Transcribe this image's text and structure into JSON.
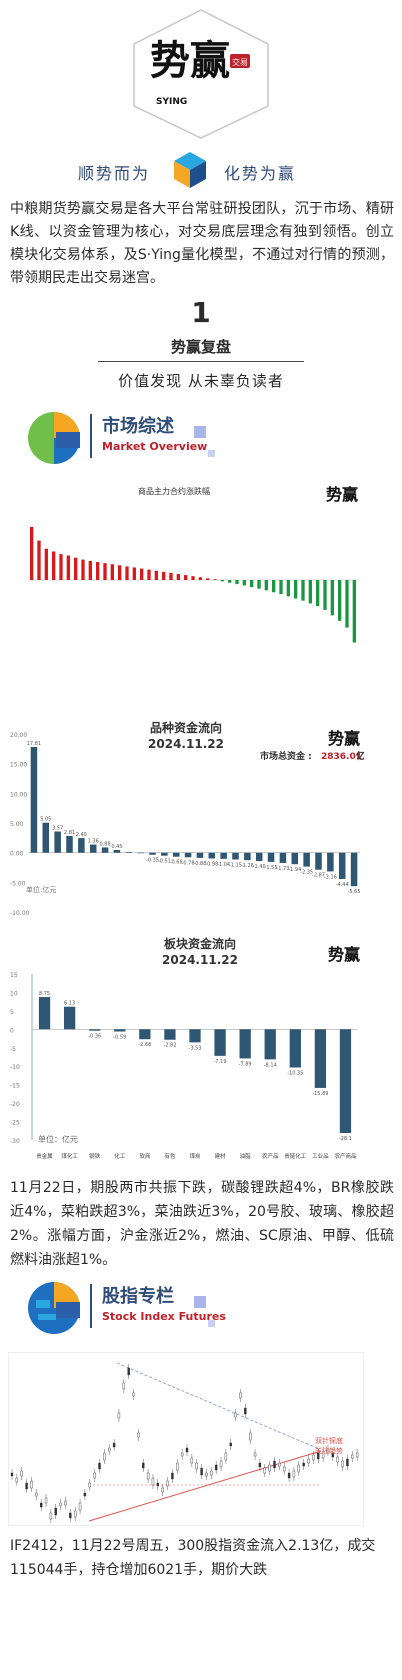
{
  "brand": {
    "logo_text_main": "势赢",
    "logo_text_sub": "SYING",
    "logo_seal": "交易",
    "tagline_left": "顺势而为",
    "tagline_right": "化势为赢"
  },
  "intro": "中粮期货势赢交易是各大平台常驻研投团队，沉于市场、精研K线、以资金管理为核心，对交易底层理念有独到领悟。创立模块化交易体系，及S·Ying量化模型，不通过对行情的预测，带领期民走出交易迷宫。",
  "section_one": {
    "number": "1",
    "subtitle": "势赢复盘",
    "slogan": "价值发现 从未辜负读者"
  },
  "market_overview": {
    "title_cn": "市场综述",
    "title_en": "Market Overview"
  },
  "chart1": {
    "title": "商品主力合约涨跌幅",
    "up_color": "#d7191c",
    "down_color": "#1a9641"
  },
  "chart2": {
    "title": "品种资金流向",
    "date": "2024.11.22",
    "total_label": "市场总资金 :",
    "total_value": "2836.01",
    "total_unit": "亿",
    "unit_note": "单位:亿元",
    "y_ticks": [
      "20.00",
      "15.00",
      "10.00",
      "5.00",
      "0.00",
      "-5.00",
      "-10.00"
    ],
    "bar_color": "#2f5673"
  },
  "chart3": {
    "title": "板块资金流向",
    "date": "2024.11.22",
    "unit_note": "单位：亿元",
    "y_ticks": [
      "15",
      "10",
      "5",
      "0",
      "-5",
      "-10",
      "-15",
      "-20",
      "-25",
      "-30"
    ],
    "bar_color": "#2f5673"
  },
  "market_para": "11月22日，期股两市共振下跌，碳酸锂跌超4%，BR橡胶跌近4%，菜粕跌超3%，菜油跌近3%，20号胶、玻璃、橡胶超2%。涨幅方面，沪金涨近2%，燃油、SC原油、甲醇、低硫燃料油涨超1%。",
  "stock_index": {
    "title_cn": "股指专栏",
    "title_en": "Stock Index Futures"
  },
  "kline": {
    "annotation_1": "双针探底",
    "annotation_2": "关注趋势"
  },
  "bottom_para": "IF2412，11月22号周五，300股指资金流入2.13亿，成交115044手，持仓增加6021手，期价大跌",
  "chart_data": [
    {
      "type": "bar",
      "title": "商品主力合约涨跌幅",
      "values": [
        1.95,
        1.45,
        1.15,
        1.05,
        0.95,
        0.9,
        0.82,
        0.75,
        0.7,
        0.66,
        0.62,
        0.58,
        0.54,
        0.5,
        0.46,
        0.42,
        0.38,
        0.34,
        0.3,
        0.26,
        0.22,
        0.18,
        0.14,
        0.1,
        0.06,
        0.03,
        -0.05,
        -0.1,
        -0.15,
        -0.2,
        -0.26,
        -0.32,
        -0.38,
        -0.45,
        -0.52,
        -0.6,
        -0.68,
        -0.76,
        -0.86,
        -0.96,
        -1.1,
        -1.3,
        -1.5,
        -1.75,
        -2.3
      ],
      "ylim": [
        -2.5,
        2.5
      ]
    },
    {
      "type": "bar",
      "title": "品种资金流向",
      "values": [
        17.81,
        5.05,
        3.57,
        2.81,
        2.45,
        1.36,
        0.88,
        0.45,
        0.1,
        -0.1,
        -0.35,
        -0.51,
        -0.68,
        -0.78,
        -0.88,
        -0.98,
        -1.04,
        -1.15,
        -1.26,
        -1.4,
        -1.55,
        -1.73,
        -1.94,
        -2.35,
        -2.87,
        -3.16,
        -4.44,
        -5.65
      ],
      "value_labels": [
        "17.81",
        "5.05",
        "3.57",
        "2.81",
        "2.45",
        "1.36",
        "0.88",
        "0.45",
        "",
        "",
        "-0.35",
        "-0.51",
        "-0.68",
        "-0.78",
        "-0.88",
        "-0.98",
        "-1.04",
        "-1.15",
        "-1.26",
        "-1.40",
        "-1.55",
        "-1.73",
        "-1.94",
        "-2.35",
        "-2.87",
        "-3.16",
        "-4.44",
        "-5.65"
      ],
      "ylim": [
        -10,
        20
      ]
    },
    {
      "type": "bar",
      "title": "板块资金流向",
      "categories": [
        "贵金属",
        "煤化工",
        "钢铁",
        "化工",
        "软商",
        "有色",
        "煤炭",
        "建材",
        "油脂",
        "农产品",
        "贵链化工",
        "工业品",
        "农产商品"
      ],
      "values": [
        8.75,
        6.13,
        -0.36,
        -0.59,
        -2.68,
        -2.82,
        -3.53,
        -7.19,
        -7.89,
        -8.14,
        -10.35,
        -15.89,
        -28.1
      ],
      "value_labels": [
        "8.75",
        "6.13",
        "-0.36",
        "-0.59",
        "-2.68",
        "-2.82",
        "-3.53",
        "-7.19",
        "-7.89",
        "-8.14",
        "-10.35",
        "-15.89",
        "-28.1"
      ],
      "ylim": [
        -30,
        15
      ]
    }
  ]
}
